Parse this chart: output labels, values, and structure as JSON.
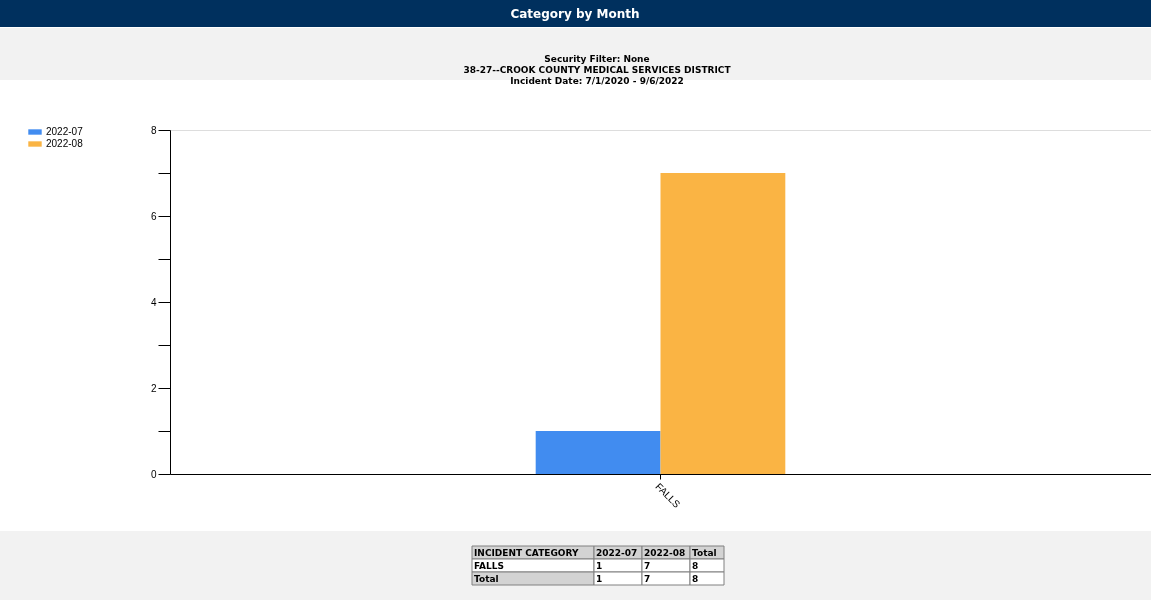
{
  "chart_data": {
    "type": "bar",
    "title": "Category by Month",
    "subtitle": "Security Filter: None\n38-27--CROOK COUNTY MEDICAL SERVICES DISTRICT\nIncident Date: 7/1/2020 - 9/6/2022",
    "categories": [
      "FALLS"
    ],
    "series": [
      {
        "name": "2022-07",
        "color": "#418cf0",
        "values": [
          1
        ]
      },
      {
        "name": "2022-08",
        "color": "#fab444",
        "values": [
          7
        ]
      }
    ],
    "ylim": [
      0,
      8
    ],
    "yticks": [
      0,
      {
        "value": 1,
        "label": null
      },
      2,
      {
        "value": 3,
        "label": null
      },
      4,
      {
        "value": 5,
        "label": null
      },
      6,
      {
        "value": 7,
        "label": null
      },
      8
    ],
    "grid": false,
    "legend": "top left",
    "annotations": [
      "INCIDENT CATEGORY",
      "2022-07",
      "2022-08",
      "Total",
      "FALLS",
      "1",
      "7",
      "8",
      "Total",
      "1",
      "7",
      "8"
    ]
  }
}
